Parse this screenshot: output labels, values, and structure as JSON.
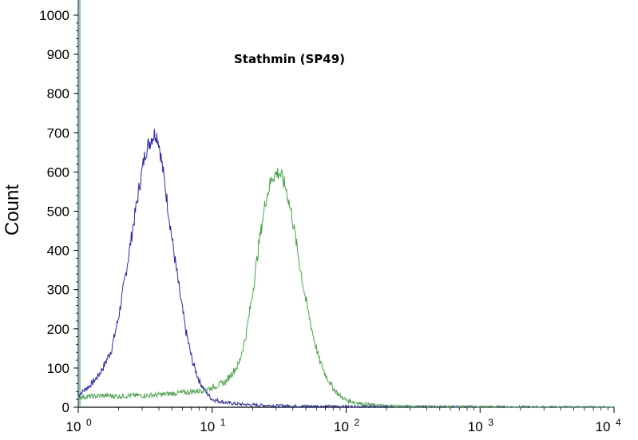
{
  "chart_data": {
    "type": "line",
    "title": "Stathmin (SP49)",
    "xlabel": "",
    "ylabel": "Count",
    "x_scale": "log",
    "xlim": [
      1,
      10000
    ],
    "ylim": [
      0,
      1000
    ],
    "grid": false,
    "legend": "none",
    "y_ticks": [
      0,
      100,
      200,
      300,
      400,
      500,
      600,
      700,
      800,
      900,
      1000
    ],
    "x_ticks": [
      {
        "base": "10",
        "exp": "0"
      },
      {
        "base": "10",
        "exp": "1"
      },
      {
        "base": "10",
        "exp": "2"
      },
      {
        "base": "10",
        "exp": "3"
      },
      {
        "base": "10",
        "exp": "4"
      }
    ],
    "series": [
      {
        "color": "#2a2aa8",
        "x": [
          1.0,
          1.12,
          1.26,
          1.41,
          1.58,
          1.78,
          2.0,
          2.24,
          2.51,
          2.82,
          3.16,
          3.55,
          3.8,
          3.98,
          4.47,
          5.01,
          5.62,
          6.31,
          7.08,
          7.94,
          8.91,
          10.0,
          12.6,
          15.8,
          20.0,
          25.1,
          31.6,
          50.1,
          100,
          200,
          500,
          1000,
          10000
        ],
        "values": [
          30,
          45,
          60,
          80,
          110,
          150,
          230,
          330,
          440,
          550,
          650,
          690,
          700,
          680,
          560,
          430,
          310,
          200,
          120,
          70,
          40,
          20,
          12,
          8,
          6,
          5,
          4,
          3,
          2,
          2,
          1,
          1,
          0
        ]
      },
      {
        "color": "#4aa64a",
        "x": [
          1.0,
          1.26,
          1.58,
          2.0,
          2.51,
          3.16,
          3.98,
          5.01,
          6.31,
          7.94,
          10.0,
          12.6,
          15.8,
          17.8,
          20.0,
          22.4,
          25.1,
          28.2,
          31.6,
          35.5,
          39.8,
          44.7,
          50.1,
          56.2,
          63.1,
          70.8,
          79.4,
          89.1,
          100,
          126,
          158,
          200,
          316,
          1000,
          10000
        ],
        "values": [
          25,
          28,
          30,
          28,
          30,
          30,
          32,
          35,
          38,
          42,
          50,
          65,
          110,
          180,
          290,
          420,
          530,
          590,
          600,
          560,
          480,
          370,
          270,
          190,
          120,
          80,
          50,
          30,
          18,
          10,
          6,
          4,
          2,
          1,
          0
        ]
      }
    ]
  }
}
